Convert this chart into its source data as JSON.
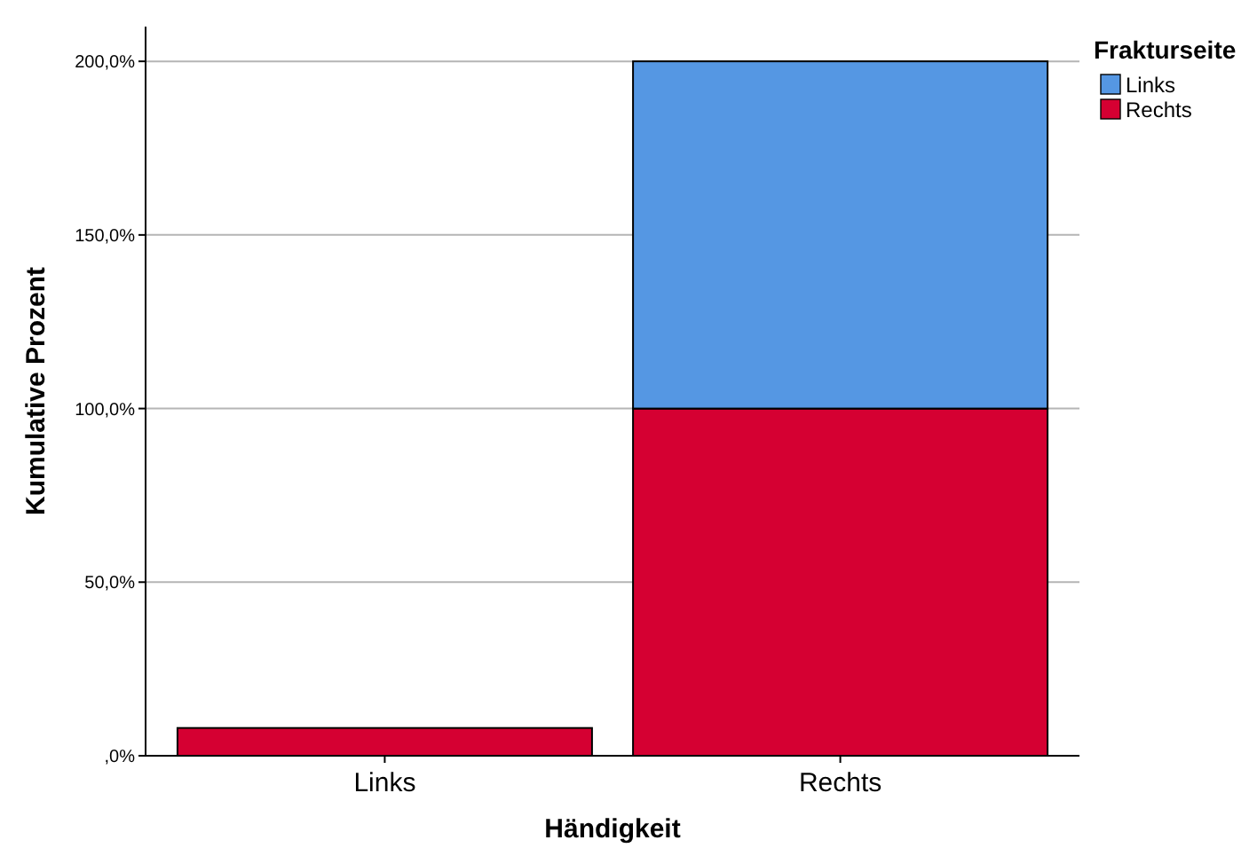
{
  "chart_data": {
    "type": "bar",
    "stacked": true,
    "xlabel": "Händigkeit",
    "ylabel": "Kumulative Prozent",
    "legend_title": "Frakturseite",
    "legend": "top right",
    "grid": "y",
    "categories": [
      "Links",
      "Rechts"
    ],
    "series": [
      {
        "name": "Rechts",
        "color": "#d50032",
        "values": [
          8,
          100
        ]
      },
      {
        "name": "Links",
        "color": "#5597e3",
        "values": [
          0,
          100
        ]
      }
    ],
    "ylim": [
      0,
      210
    ],
    "yticks": [
      {
        "value": 0,
        "label": ",0%"
      },
      {
        "value": 50,
        "label": "50,0%"
      },
      {
        "value": 100,
        "label": "100,0%"
      },
      {
        "value": 150,
        "label": "150,0%"
      },
      {
        "value": 200,
        "label": "200,0%"
      }
    ]
  }
}
